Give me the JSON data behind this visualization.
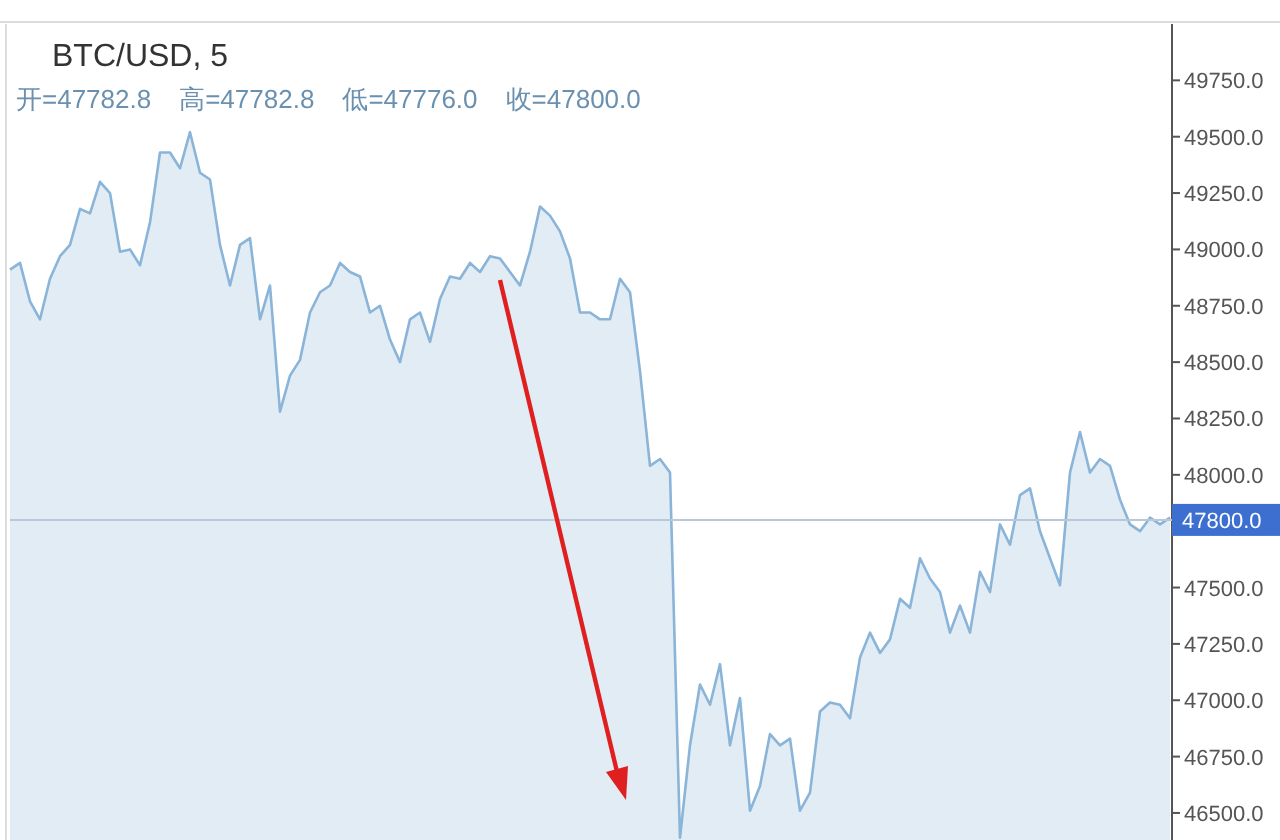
{
  "chart_data": {
    "type": "area",
    "title": "BTC/USD, 5",
    "annotations": [
      "开=47782.8",
      "高=47782.8",
      "低=47776.0",
      "收=47800.0"
    ],
    "color": "#8ab4d8",
    "categories": [
      null,
      null,
      null,
      null,
      null,
      null,
      null,
      null,
      null,
      null,
      null,
      null,
      null,
      null,
      null,
      null,
      null,
      null,
      null,
      null,
      null,
      null,
      null,
      null,
      null,
      null,
      null,
      null,
      null,
      null,
      null,
      null,
      null,
      null,
      null,
      null,
      null,
      null,
      null,
      null,
      null,
      null,
      null,
      null,
      null,
      null,
      null,
      null,
      null,
      null,
      null,
      null,
      null,
      null,
      null,
      null,
      null,
      null,
      null,
      null,
      null,
      null,
      null,
      null,
      null,
      null,
      null,
      null,
      null,
      null,
      null,
      null,
      null,
      null,
      null,
      null,
      null,
      null,
      null,
      null,
      null,
      null,
      null,
      null,
      null,
      null,
      null,
      null,
      null,
      null,
      null,
      null,
      null,
      null,
      null,
      null,
      null,
      null,
      null,
      null,
      null,
      null,
      null,
      null,
      null,
      null,
      null,
      null,
      null,
      null,
      null,
      null,
      null,
      null,
      null,
      null,
      null
    ],
    "values": [
      48910,
      48940,
      48770,
      48690,
      48870,
      48970,
      49020,
      49180,
      49160,
      49300,
      49250,
      48990,
      49000,
      48930,
      49120,
      49430,
      49430,
      49360,
      49520,
      49340,
      49310,
      49020,
      48840,
      49020,
      49050,
      48690,
      48840,
      48280,
      48440,
      48510,
      48720,
      48810,
      48840,
      48940,
      48900,
      48880,
      48720,
      48750,
      48600,
      48500,
      48690,
      48720,
      48590,
      48780,
      48880,
      48870,
      48940,
      48900,
      48970,
      48960,
      48900,
      48840,
      48990,
      49190,
      49150,
      49080,
      48960,
      48720,
      48720,
      48690,
      48690,
      48870,
      48810,
      48460,
      48040,
      48070,
      48010,
      46390,
      46800,
      47070,
      46980,
      47160,
      46800,
      47010,
      46510,
      46620,
      46850,
      46800,
      46830,
      46510,
      46590,
      46950,
      46990,
      46980,
      46920,
      47190,
      47300,
      47210,
      47270,
      47450,
      47410,
      47630,
      47540,
      47480,
      47300,
      47420,
      47300,
      47570,
      47480,
      47780,
      47690,
      47910,
      47940,
      47750,
      47630,
      47510,
      48010,
      48190,
      48010,
      48070,
      48040,
      47890,
      47780,
      47750,
      47810,
      47780,
      47810
    ],
    "ylim": [
      46380,
      50000
    ],
    "yticks": [
      {
        "value": 46500,
        "label": "46500.0"
      },
      {
        "value": 46750,
        "label": "46750.0"
      },
      {
        "value": 47000,
        "label": "47000.0"
      },
      {
        "value": 47250,
        "label": "47250.0"
      },
      {
        "value": 47500,
        "label": "47500.0"
      },
      {
        "value": 48000,
        "label": "48000.0"
      },
      {
        "value": 48250,
        "label": "48250.0"
      },
      {
        "value": 48500,
        "label": "48500.0"
      },
      {
        "value": 48750,
        "label": "48750.0"
      },
      {
        "value": 49000,
        "label": "49000.0"
      },
      {
        "value": 49250,
        "label": "49250.0"
      },
      {
        "value": 49500,
        "label": "49500.0"
      },
      {
        "value": 49750,
        "label": "49750.0"
      }
    ],
    "ref_lines": [
      {
        "axis": "y",
        "value": 47800,
        "label": "47800.0",
        "color": "#b8c8d8"
      }
    ]
  }
}
